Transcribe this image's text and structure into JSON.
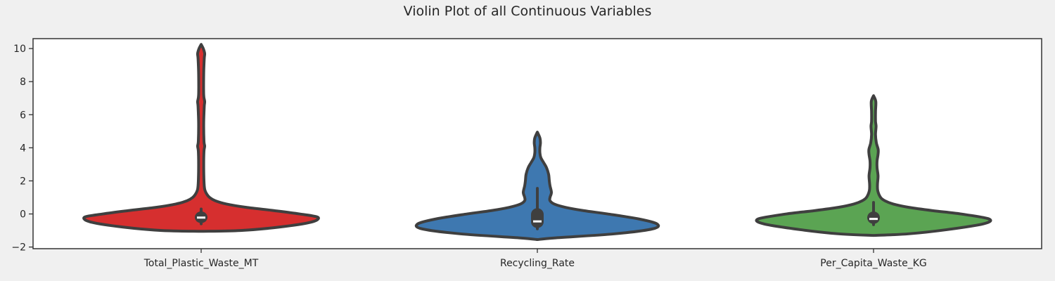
{
  "chart_data": {
    "type": "violin",
    "title": "Violin Plot of all Continuous Variables",
    "xlabel": "",
    "ylabel": "",
    "ylim": [
      -2.1,
      10.6
    ],
    "yticks": [
      -2,
      0,
      2,
      4,
      6,
      8,
      10
    ],
    "ytick_labels": [
      "−2",
      "0",
      "2",
      "4",
      "6",
      "8",
      "10"
    ],
    "grid": false,
    "categories": [
      "Total_Plastic_Waste_MT",
      "Recycling_Rate",
      "Per_Capita_Waste_KG"
    ],
    "series": [
      {
        "category": "Total_Plastic_Waste_MT",
        "color": "#d62f2f",
        "min": -1.05,
        "max": 10.25,
        "q1": -0.55,
        "median": -0.22,
        "q3": 0.15,
        "whisker_low": -0.6,
        "whisker_high": 0.3,
        "density": [
          [
            -1.05,
            0.0
          ],
          [
            -1.0,
            0.28
          ],
          [
            -0.8,
            0.55
          ],
          [
            -0.5,
            0.78
          ],
          [
            -0.2,
            0.83
          ],
          [
            0.0,
            0.7
          ],
          [
            0.2,
            0.52
          ],
          [
            0.4,
            0.32
          ],
          [
            0.6,
            0.18
          ],
          [
            0.8,
            0.1
          ],
          [
            1.0,
            0.06
          ],
          [
            1.2,
            0.04
          ],
          [
            1.5,
            0.025
          ],
          [
            2.0,
            0.02
          ],
          [
            3.0,
            0.018
          ],
          [
            3.8,
            0.02
          ],
          [
            4.1,
            0.025
          ],
          [
            4.4,
            0.02
          ],
          [
            5.5,
            0.018
          ],
          [
            6.5,
            0.022
          ],
          [
            6.8,
            0.025
          ],
          [
            7.2,
            0.018
          ],
          [
            8.5,
            0.018
          ],
          [
            9.4,
            0.022
          ],
          [
            9.7,
            0.025
          ],
          [
            10.0,
            0.015
          ],
          [
            10.25,
            0.0
          ]
        ]
      },
      {
        "category": "Recycling_Rate",
        "color": "#3e78b0",
        "min": -1.55,
        "max": 4.95,
        "q1": -0.85,
        "median": -0.45,
        "q3": 0.35,
        "whisker_low": -0.9,
        "whisker_high": 1.55,
        "density": [
          [
            -1.55,
            0.0
          ],
          [
            -1.45,
            0.12
          ],
          [
            -1.2,
            0.55
          ],
          [
            -0.9,
            0.82
          ],
          [
            -0.6,
            0.85
          ],
          [
            -0.3,
            0.72
          ],
          [
            0.0,
            0.5
          ],
          [
            0.2,
            0.33
          ],
          [
            0.4,
            0.2
          ],
          [
            0.6,
            0.12
          ],
          [
            0.8,
            0.09
          ],
          [
            1.0,
            0.09
          ],
          [
            1.3,
            0.1
          ],
          [
            1.7,
            0.09
          ],
          [
            2.0,
            0.085
          ],
          [
            2.4,
            0.08
          ],
          [
            2.8,
            0.065
          ],
          [
            3.1,
            0.045
          ],
          [
            3.4,
            0.025
          ],
          [
            3.7,
            0.018
          ],
          [
            4.0,
            0.018
          ],
          [
            4.3,
            0.022
          ],
          [
            4.6,
            0.018
          ],
          [
            4.95,
            0.0
          ]
        ]
      },
      {
        "category": "Per_Capita_Waste_KG",
        "color": "#5ba453",
        "min": -1.3,
        "max": 7.15,
        "q1": -0.6,
        "median": -0.3,
        "q3": 0.15,
        "whisker_low": -0.65,
        "whisker_high": 0.7,
        "density": [
          [
            -1.3,
            0.0
          ],
          [
            -1.2,
            0.25
          ],
          [
            -0.95,
            0.52
          ],
          [
            -0.6,
            0.78
          ],
          [
            -0.3,
            0.82
          ],
          [
            0.0,
            0.62
          ],
          [
            0.2,
            0.42
          ],
          [
            0.4,
            0.25
          ],
          [
            0.6,
            0.14
          ],
          [
            0.8,
            0.08
          ],
          [
            1.0,
            0.05
          ],
          [
            1.4,
            0.03
          ],
          [
            1.8,
            0.028
          ],
          [
            2.3,
            0.032
          ],
          [
            2.8,
            0.025
          ],
          [
            3.2,
            0.025
          ],
          [
            3.6,
            0.032
          ],
          [
            3.9,
            0.033
          ],
          [
            4.3,
            0.02
          ],
          [
            4.8,
            0.014
          ],
          [
            5.3,
            0.018
          ],
          [
            5.6,
            0.014
          ],
          [
            6.2,
            0.014
          ],
          [
            6.8,
            0.016
          ],
          [
            7.15,
            0.0
          ]
        ]
      }
    ]
  }
}
